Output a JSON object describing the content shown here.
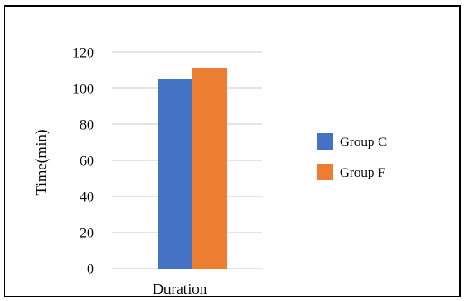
{
  "chart_data": {
    "type": "bar",
    "categories": [
      "Duration"
    ],
    "series": [
      {
        "name": "Group C",
        "values": [
          105
        ],
        "color": "#4472C4"
      },
      {
        "name": "Group F",
        "values": [
          111
        ],
        "color": "#ED7D31"
      }
    ],
    "ylabel": "Time(min)",
    "ylim": [
      0,
      120
    ],
    "yticks": [
      "0",
      "20",
      "40",
      "60",
      "80",
      "100",
      "120"
    ],
    "grid": true,
    "legend_position": "right"
  }
}
